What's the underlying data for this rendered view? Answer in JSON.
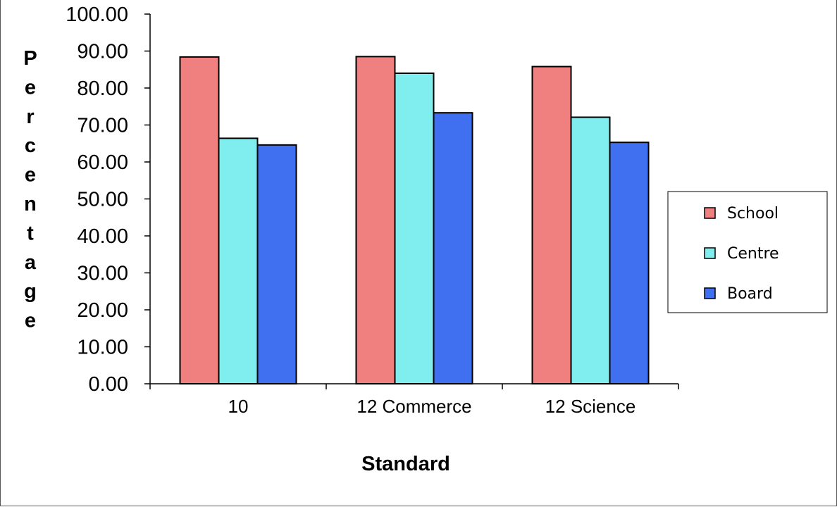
{
  "chart_data": {
    "type": "bar",
    "xlabel": "Standard",
    "ylabel": "Percentage",
    "categories": [
      "10",
      "12 Commerce",
      "12 Science"
    ],
    "series": [
      {
        "name": "School",
        "values": [
          88.4,
          88.5,
          85.8
        ],
        "color": "#f08080"
      },
      {
        "name": "Centre",
        "values": [
          66.4,
          84.0,
          72.1
        ],
        "color": "#80eeee"
      },
      {
        "name": "Board",
        "values": [
          64.6,
          73.3,
          65.3
        ],
        "color": "#4070f0"
      }
    ],
    "ylim": [
      0,
      100
    ],
    "yticks": [
      "0.00",
      "10.00",
      "20.00",
      "30.00",
      "40.00",
      "50.00",
      "60.00",
      "70.00",
      "80.00",
      "90.00",
      "100.00"
    ],
    "grid": false,
    "legend_position": "right"
  }
}
